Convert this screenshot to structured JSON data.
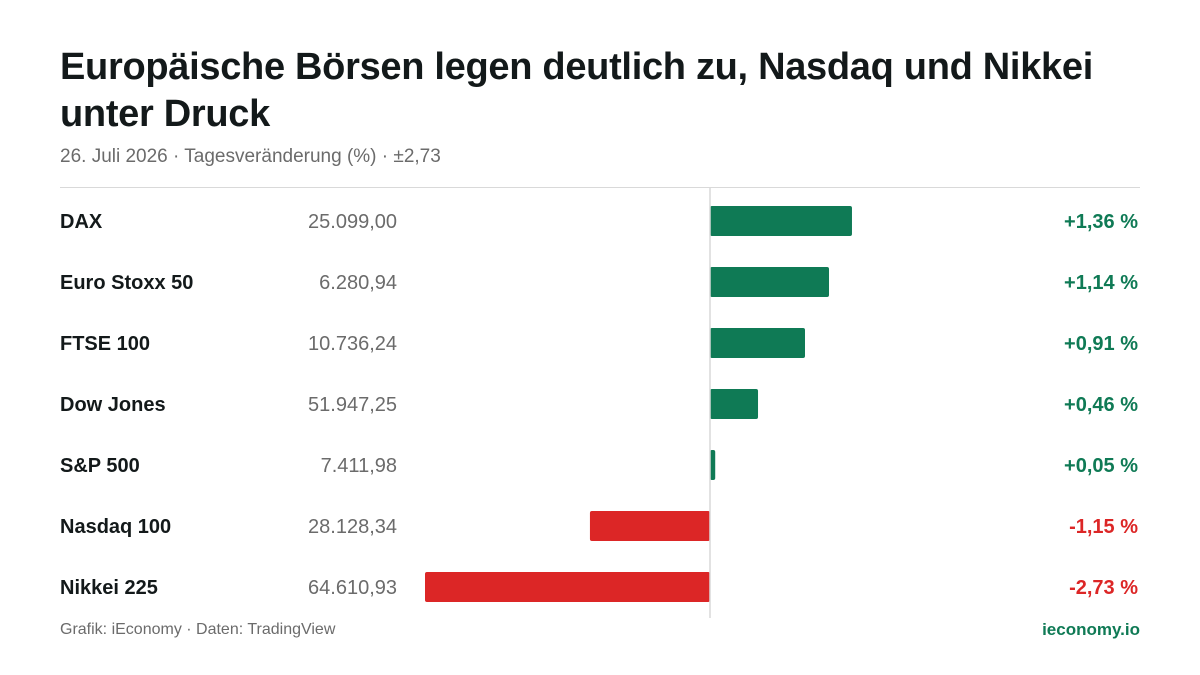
{
  "header": {
    "title": "Europäische Börsen legen deutlich zu, Nasdaq und Nikkei unter Druck",
    "subtitle": "26. Juli 2026 · Tagesveränderung (%) · ±2,73"
  },
  "footer": {
    "source": "Grafik: iEconomy · Daten: TradingView",
    "brand": "ieconomy.io"
  },
  "colors": {
    "positive": "#0f7a55",
    "negative": "#dc2626",
    "axis": "#d9d9d9"
  },
  "chart_data": {
    "type": "bar",
    "orientation": "horizontal",
    "xlim": [
      -2.73,
      2.73
    ],
    "grid": false,
    "legend": "none",
    "categories": [
      "DAX",
      "Euro Stoxx 50",
      "FTSE 100",
      "Dow Jones",
      "S&P 500",
      "Nasdaq 100",
      "Nikkei 225"
    ],
    "index_levels": [
      "25.099,00",
      "6.280,94",
      "10.736,24",
      "51.947,25",
      "7.411,98",
      "28.128,34",
      "64.610,93"
    ],
    "values": [
      1.36,
      1.14,
      0.91,
      0.46,
      0.05,
      -1.15,
      -2.73
    ],
    "value_labels": [
      "+1,36 %",
      "+1,14 %",
      "+0,91 %",
      "+0,46 %",
      "+0,05 %",
      "-1,15 %",
      "-2,73 %"
    ]
  }
}
